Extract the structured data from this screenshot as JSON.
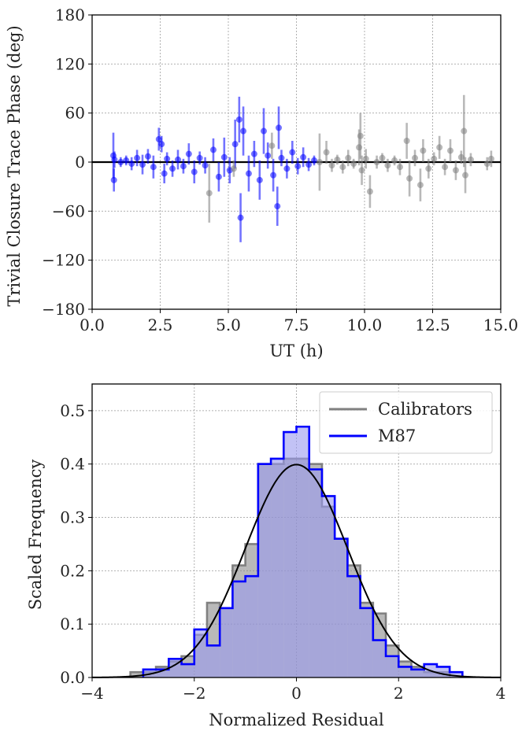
{
  "chart_data": [
    {
      "type": "scatter",
      "xlabel": "UT (h)",
      "ylabel": "Trivial Closure Trace Phase (deg)",
      "xlim": [
        0.0,
        15.0
      ],
      "ylim": [
        -180,
        180
      ],
      "xticks": [
        0.0,
        2.5,
        5.0,
        7.5,
        10.0,
        12.5,
        15.0
      ],
      "xtick_labels": [
        "0.0",
        "2.5",
        "5.0",
        "7.5",
        "10.0",
        "12.5",
        "15.0"
      ],
      "yticks": [
        -180,
        -120,
        -60,
        0,
        60,
        120,
        180
      ],
      "ytick_labels": [
        "−180",
        "−120",
        "−60",
        "0",
        "60",
        "120",
        "180"
      ],
      "grid": true,
      "reference_line_y": 0,
      "series": [
        {
          "color": "#0000ff",
          "points": [
            {
              "x": 0.78,
              "y": 8,
              "err": 28
            },
            {
              "x": 0.8,
              "y": -22,
              "err": 14
            },
            {
              "x": 0.82,
              "y": 3,
              "err": 10
            },
            {
              "x": 1.05,
              "y": 0,
              "err": 6
            },
            {
              "x": 1.25,
              "y": 2,
              "err": 6
            },
            {
              "x": 1.45,
              "y": -2,
              "err": 8
            },
            {
              "x": 1.65,
              "y": 5,
              "err": 10
            },
            {
              "x": 1.85,
              "y": -3,
              "err": 12
            },
            {
              "x": 2.05,
              "y": 7,
              "err": 9
            },
            {
              "x": 2.25,
              "y": -6,
              "err": 14
            },
            {
              "x": 2.45,
              "y": 28,
              "err": 14
            },
            {
              "x": 2.55,
              "y": 22,
              "err": 10
            },
            {
              "x": 2.65,
              "y": -14,
              "err": 12
            },
            {
              "x": 2.75,
              "y": 4,
              "err": 8
            },
            {
              "x": 2.95,
              "y": -8,
              "err": 10
            },
            {
              "x": 3.15,
              "y": 3,
              "err": 12
            },
            {
              "x": 3.35,
              "y": -5,
              "err": 9
            },
            {
              "x": 3.55,
              "y": 10,
              "err": 13
            },
            {
              "x": 3.75,
              "y": -12,
              "err": 14
            },
            {
              "x": 3.95,
              "y": 5,
              "err": 8
            },
            {
              "x": 4.15,
              "y": -4,
              "err": 10
            },
            {
              "x": 4.45,
              "y": 15,
              "err": 14
            },
            {
              "x": 4.65,
              "y": -18,
              "err": 18
            },
            {
              "x": 4.85,
              "y": 6,
              "err": 24
            },
            {
              "x": 5.05,
              "y": -10,
              "err": 16
            },
            {
              "x": 5.25,
              "y": 22,
              "err": 30
            },
            {
              "x": 5.4,
              "y": 52,
              "err": 28
            },
            {
              "x": 5.45,
              "y": -68,
              "err": 30
            },
            {
              "x": 5.55,
              "y": 38,
              "err": 30
            },
            {
              "x": 5.75,
              "y": -14,
              "err": 22
            },
            {
              "x": 5.95,
              "y": 10,
              "err": 16
            },
            {
              "x": 6.15,
              "y": -22,
              "err": 24
            },
            {
              "x": 6.3,
              "y": 38,
              "err": 28
            },
            {
              "x": 6.45,
              "y": 8,
              "err": 16
            },
            {
              "x": 6.65,
              "y": -16,
              "err": 20
            },
            {
              "x": 6.8,
              "y": -54,
              "err": 24
            },
            {
              "x": 6.85,
              "y": 42,
              "err": 26
            },
            {
              "x": 6.95,
              "y": 5,
              "err": 10
            },
            {
              "x": 7.15,
              "y": -8,
              "err": 12
            },
            {
              "x": 7.35,
              "y": 12,
              "err": 14
            },
            {
              "x": 7.55,
              "y": -5,
              "err": 10
            },
            {
              "x": 7.75,
              "y": 6,
              "err": 12
            },
            {
              "x": 7.95,
              "y": -3,
              "err": 8
            },
            {
              "x": 8.15,
              "y": 2,
              "err": 6
            }
          ]
        },
        {
          "color": "#808080",
          "points": [
            {
              "x": 4.3,
              "y": -38,
              "err": 36
            },
            {
              "x": 5.2,
              "y": -8,
              "err": 10
            },
            {
              "x": 6.6,
              "y": 20,
              "err": 16
            },
            {
              "x": 8.35,
              "y": 0,
              "err": 35
            },
            {
              "x": 8.6,
              "y": 12,
              "err": 14
            },
            {
              "x": 8.8,
              "y": -4,
              "err": 8
            },
            {
              "x": 9.0,
              "y": 3,
              "err": 6
            },
            {
              "x": 9.2,
              "y": -6,
              "err": 8
            },
            {
              "x": 9.4,
              "y": 5,
              "err": 10
            },
            {
              "x": 9.6,
              "y": -2,
              "err": 6
            },
            {
              "x": 9.8,
              "y": 18,
              "err": 22
            },
            {
              "x": 9.85,
              "y": 32,
              "err": 28
            },
            {
              "x": 9.9,
              "y": -10,
              "err": 18
            },
            {
              "x": 10.05,
              "y": 4,
              "err": 12
            },
            {
              "x": 10.2,
              "y": -36,
              "err": 20
            },
            {
              "x": 10.45,
              "y": 0,
              "err": 8
            },
            {
              "x": 10.65,
              "y": 5,
              "err": 6
            },
            {
              "x": 10.85,
              "y": -4,
              "err": 8
            },
            {
              "x": 11.1,
              "y": 2,
              "err": 6
            },
            {
              "x": 11.3,
              "y": -6,
              "err": 10
            },
            {
              "x": 11.55,
              "y": 26,
              "err": 22
            },
            {
              "x": 11.65,
              "y": -20,
              "err": 22
            },
            {
              "x": 11.85,
              "y": 5,
              "err": 10
            },
            {
              "x": 12.05,
              "y": -28,
              "err": 20
            },
            {
              "x": 12.15,
              "y": 14,
              "err": 14
            },
            {
              "x": 12.35,
              "y": -8,
              "err": 12
            },
            {
              "x": 12.55,
              "y": 4,
              "err": 8
            },
            {
              "x": 12.75,
              "y": 18,
              "err": 14
            },
            {
              "x": 12.95,
              "y": -6,
              "err": 10
            },
            {
              "x": 13.15,
              "y": 14,
              "err": 14
            },
            {
              "x": 13.35,
              "y": -10,
              "err": 12
            },
            {
              "x": 13.55,
              "y": 6,
              "err": 8
            },
            {
              "x": 13.65,
              "y": 38,
              "err": 44
            },
            {
              "x": 13.7,
              "y": -16,
              "err": 22
            },
            {
              "x": 13.9,
              "y": 3,
              "err": 8
            },
            {
              "x": 14.5,
              "y": -2,
              "err": 8
            },
            {
              "x": 14.65,
              "y": 4,
              "err": 10
            }
          ]
        }
      ]
    },
    {
      "type": "histogram",
      "xlabel": "Normalized Residual",
      "ylabel": "Scaled Frequency",
      "xlim": [
        -4,
        4
      ],
      "ylim": [
        0,
        0.55
      ],
      "xticks": [
        -4,
        -2,
        0,
        2,
        4
      ],
      "xtick_labels": [
        "−4",
        "−2",
        "0",
        "2",
        "4"
      ],
      "yticks": [
        0.0,
        0.1,
        0.2,
        0.3,
        0.4,
        0.5
      ],
      "ytick_labels": [
        "0.0",
        "0.1",
        "0.2",
        "0.3",
        "0.4",
        "0.5"
      ],
      "grid": true,
      "legend_position": "top-right",
      "series": [
        {
          "name": "Calibrators",
          "color": "#808080",
          "fill": "#808080",
          "bin_edges": [
            -3.25,
            -3.0,
            -2.75,
            -2.5,
            -2.25,
            -2.0,
            -1.75,
            -1.5,
            -1.25,
            -1.0,
            -0.75,
            -0.5,
            -0.25,
            0.0,
            0.25,
            0.5,
            0.75,
            1.0,
            1.25,
            1.5,
            1.75,
            2.0,
            2.25,
            2.5,
            2.75,
            3.0
          ],
          "values": [
            0.01,
            0.01,
            0.02,
            0.03,
            0.04,
            0.08,
            0.14,
            0.13,
            0.21,
            0.25,
            0.4,
            0.4,
            0.41,
            0.41,
            0.4,
            0.32,
            0.26,
            0.21,
            0.14,
            0.12,
            0.06,
            0.03,
            0.02,
            0.01,
            0.01
          ]
        },
        {
          "name": "M87",
          "color": "#0000ff",
          "fill": "#9999ee",
          "bin_edges": [
            -3.0,
            -2.75,
            -2.5,
            -2.25,
            -2.0,
            -1.75,
            -1.5,
            -1.25,
            -1.0,
            -0.75,
            -0.5,
            -0.25,
            0.0,
            0.25,
            0.5,
            0.75,
            1.0,
            1.25,
            1.5,
            1.75,
            2.0,
            2.25,
            2.5,
            2.75,
            3.0,
            3.25
          ],
          "values": [
            0.015,
            0.015,
            0.035,
            0.025,
            0.09,
            0.06,
            0.13,
            0.18,
            0.19,
            0.4,
            0.41,
            0.46,
            0.47,
            0.39,
            0.34,
            0.26,
            0.19,
            0.13,
            0.07,
            0.04,
            0.02,
            0.015,
            0.025,
            0.02,
            0.01
          ]
        },
        {
          "name": "",
          "type": "line",
          "color": "#000000",
          "function": "standard-normal-pdf"
        }
      ],
      "legend": [
        {
          "label": "Calibrators",
          "color": "#808080"
        },
        {
          "label": "M87",
          "color": "#0000ff"
        }
      ]
    }
  ]
}
